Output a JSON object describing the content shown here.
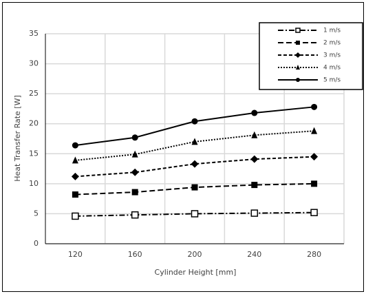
{
  "chart_data": {
    "type": "line",
    "x_label": "Cylinder Height [mm]",
    "y_label": "Heat Transfer Rate [W]",
    "categories": [
      "120",
      "160",
      "200",
      "240",
      "280"
    ],
    "ylim": [
      0,
      35
    ],
    "yticks": [
      0,
      5,
      10,
      15,
      20,
      25,
      30,
      35
    ],
    "grid": true,
    "legend": "top-right",
    "series": [
      {
        "name": "1 m/s",
        "color": "#000000",
        "dash": "dash-dot",
        "marker": "open-square",
        "values": [
          4.6,
          4.8,
          5.0,
          5.1,
          5.2
        ]
      },
      {
        "name": "2 m/s",
        "color": "#000000",
        "dash": "long-dash",
        "marker": "square",
        "values": [
          8.2,
          8.6,
          9.4,
          9.8,
          10.0
        ]
      },
      {
        "name": "3 m/s",
        "color": "#000000",
        "dash": "dash",
        "marker": "diamond",
        "values": [
          11.2,
          11.9,
          13.3,
          14.1,
          14.5
        ]
      },
      {
        "name": "4 m/s",
        "color": "#000000",
        "dash": "dot",
        "marker": "triangle",
        "values": [
          13.9,
          14.9,
          17.0,
          18.1,
          18.8
        ]
      },
      {
        "name": "5 m/s",
        "color": "#000000",
        "dash": "solid",
        "marker": "circle",
        "values": [
          16.4,
          17.7,
          20.4,
          21.8,
          22.8
        ]
      }
    ]
  }
}
